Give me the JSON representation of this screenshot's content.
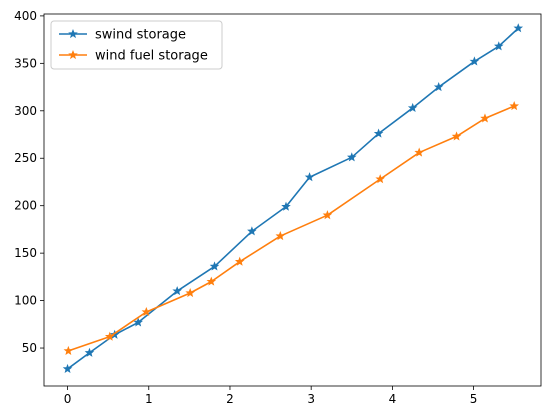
{
  "chart_data": {
    "type": "line",
    "xlim": [
      -0.29,
      5.83
    ],
    "ylim": [
      10,
      402
    ],
    "xticks": [
      0,
      1,
      2,
      3,
      4,
      5
    ],
    "yticks": [
      50,
      100,
      150,
      200,
      250,
      300,
      350,
      400
    ],
    "grid": false,
    "legend_position": "upper-left",
    "series": [
      {
        "name": "swind storage",
        "color": "#1f77b4",
        "marker": "star",
        "points": [
          [
            0.0,
            28
          ],
          [
            0.27,
            45
          ],
          [
            0.58,
            64
          ],
          [
            0.87,
            77
          ],
          [
            1.35,
            110
          ],
          [
            1.81,
            136
          ],
          [
            2.27,
            173
          ],
          [
            2.69,
            199
          ],
          [
            2.98,
            230
          ],
          [
            3.5,
            251
          ],
          [
            3.83,
            276
          ],
          [
            4.25,
            303
          ],
          [
            4.57,
            325
          ],
          [
            5.01,
            352
          ],
          [
            5.31,
            368
          ],
          [
            5.55,
            387
          ]
        ]
      },
      {
        "name": "wind fuel storage",
        "color": "#ff7f0e",
        "marker": "star",
        "points": [
          [
            0.01,
            47
          ],
          [
            0.52,
            62
          ],
          [
            0.97,
            88
          ],
          [
            1.51,
            108
          ],
          [
            1.77,
            120
          ],
          [
            2.12,
            141
          ],
          [
            2.62,
            168
          ],
          [
            3.2,
            190
          ],
          [
            3.85,
            228
          ],
          [
            4.33,
            256
          ],
          [
            4.79,
            273
          ],
          [
            5.14,
            292
          ],
          [
            5.5,
            305
          ]
        ]
      }
    ]
  }
}
